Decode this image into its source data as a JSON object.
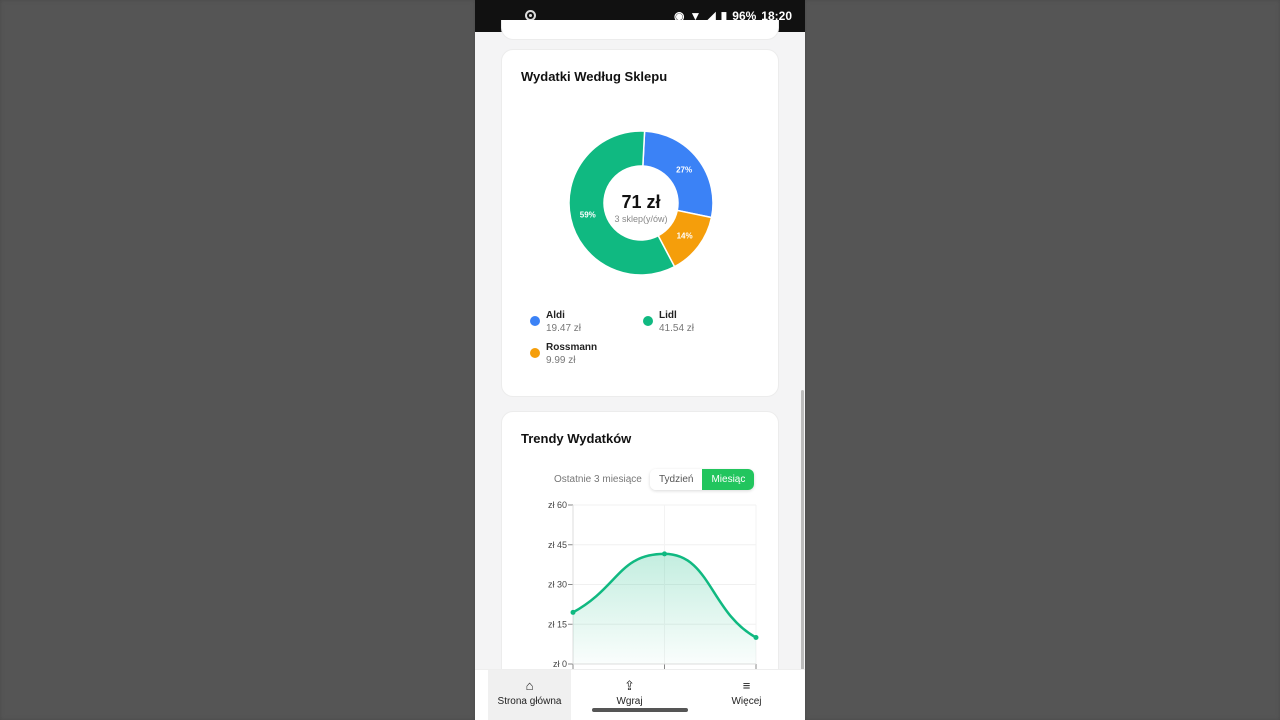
{
  "status_bar": {
    "battery": "96%",
    "time": "18:20"
  },
  "store_card": {
    "title": "Wydatki Według Sklepu",
    "center_total": "71 zł",
    "center_sub": "3 sklep(y/ów)",
    "slices": [
      {
        "name": "Aldi",
        "value": "19.47 zł",
        "amount": 19.47,
        "percent": "27%",
        "color": "#3b82f6"
      },
      {
        "name": "Rossmann",
        "value": "9.99 zł",
        "amount": 9.99,
        "percent": "14%",
        "color": "#f59e0b"
      },
      {
        "name": "Lidl",
        "value": "41.54 zł",
        "amount": 41.54,
        "percent": "59%",
        "color": "#10b981"
      }
    ]
  },
  "trend_card": {
    "title": "Trendy Wydatków",
    "period_label": "Ostatnie 3 miesiące",
    "toggle": {
      "week": "Tydzień",
      "month": "Miesiąc",
      "active": "month"
    },
    "accent": "#22c55e"
  },
  "chart_data": {
    "type": "area",
    "y_ticks": [
      "zł 0",
      "zł 15",
      "zł 30",
      "zł 45",
      "zł 60"
    ],
    "ylim": [
      0,
      60
    ],
    "values": [
      19.47,
      41.54,
      9.99
    ],
    "color": "#10b981"
  },
  "nav": {
    "home": "Strona główna",
    "upload": "Wgraj",
    "more": "Więcej"
  }
}
